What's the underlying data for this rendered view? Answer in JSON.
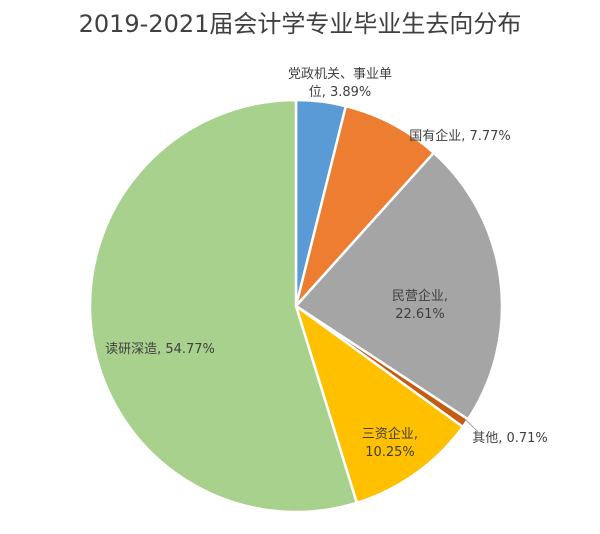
{
  "chart_data": {
    "type": "pie",
    "title": "2019-2021届会计学专业毕业生去向分布",
    "slices": [
      {
        "label": "党政机关、事业单位",
        "value": 3.89,
        "color": "#5b9bd5",
        "display": [
          "党政机关、事业单",
          "位, 3.89%"
        ]
      },
      {
        "label": "国有企业",
        "value": 7.77,
        "color": "#ed7d31",
        "display": [
          "国有企业, 7.77%"
        ]
      },
      {
        "label": "民营企业",
        "value": 22.61,
        "color": "#a5a5a5",
        "display": [
          "民营企业,",
          "22.61%"
        ]
      },
      {
        "label": "其他",
        "value": 0.71,
        "color": "#c55a11",
        "display": [
          "其他, 0.71%"
        ]
      },
      {
        "label": "三资企业",
        "value": 10.25,
        "color": "#ffc000",
        "display": [
          "三资企业,",
          "10.25%"
        ]
      },
      {
        "label": "读研深造",
        "value": 54.77,
        "color": "#a9d18e",
        "display": [
          "读研深造, 54.77%"
        ]
      }
    ]
  }
}
